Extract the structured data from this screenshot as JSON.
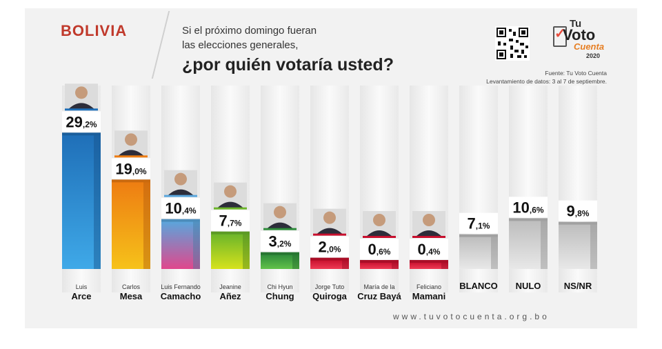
{
  "header": {
    "country": "BOLIVIA",
    "question_line1": "Si el próximo domingo fueran",
    "question_line2": "las elecciones generales,",
    "question_line3": "¿por quién votaría usted?"
  },
  "logo": {
    "tu": "Tu",
    "voto": "Voto",
    "cuenta": "Cuenta",
    "year": "2020"
  },
  "source": {
    "line1": "Fuente: Tu Voto Cuenta",
    "line2": "Levantamiento de datos: 3 al 7 de septiembre."
  },
  "footer": {
    "website": "www.tuvotocuenta.org.bo"
  },
  "chart_data": {
    "type": "bar",
    "title": "¿por quién votaría usted?",
    "categories": [
      [
        "Luis",
        "Arce"
      ],
      [
        "Carlos",
        "Mesa"
      ],
      [
        "Luis Fernando",
        "Camacho"
      ],
      [
        "Jeanine",
        "Añez"
      ],
      [
        "Chi Hyun",
        "Chung"
      ],
      [
        "Jorge Tuto",
        "Quiroga"
      ],
      [
        "María de la",
        "Cruz Bayá"
      ],
      [
        "Feliciano",
        "Mamani"
      ],
      [
        "",
        "BLANCO"
      ],
      [
        "",
        "NULO"
      ],
      [
        "",
        "NS/NR"
      ]
    ],
    "values": [
      29.2,
      19.0,
      10.4,
      7.7,
      3.2,
      2.0,
      0.6,
      0.4,
      7.1,
      10.6,
      9.8
    ],
    "value_labels": [
      [
        "29",
        ",2%"
      ],
      [
        "19",
        ",0%"
      ],
      [
        "10",
        ",4%"
      ],
      [
        "7",
        ",7%"
      ],
      [
        "3",
        ",2%"
      ],
      [
        "2",
        ",0%"
      ],
      [
        "0",
        ",6%"
      ],
      [
        "0",
        ",4%"
      ],
      [
        "7",
        ",1%"
      ],
      [
        "10",
        ",6%"
      ],
      [
        "9",
        ",8%"
      ]
    ],
    "colors": [
      [
        "#1f6fb8",
        "#3fa9e8"
      ],
      [
        "#ee7d12",
        "#f6c21a"
      ],
      [
        "#5aa6dc",
        "#e0478c"
      ],
      [
        "#6cb52a",
        "#d6e21c"
      ],
      [
        "#2e8b3a",
        "#62c24a"
      ],
      [
        "#c8102e",
        "#ee3b55"
      ],
      [
        "#c8102e",
        "#ee3b55"
      ],
      [
        "#c8102e",
        "#ee3b55"
      ],
      [
        "#bdbdbd",
        "#e8e8e8"
      ],
      [
        "#bdbdbd",
        "#e8e8e8"
      ],
      [
        "#bdbdbd",
        "#e8e8e8"
      ]
    ],
    "has_photo": [
      true,
      true,
      true,
      true,
      true,
      true,
      true,
      true,
      false,
      false,
      false
    ],
    "ylim": [
      0,
      30
    ],
    "grid": false,
    "legend": "none"
  }
}
